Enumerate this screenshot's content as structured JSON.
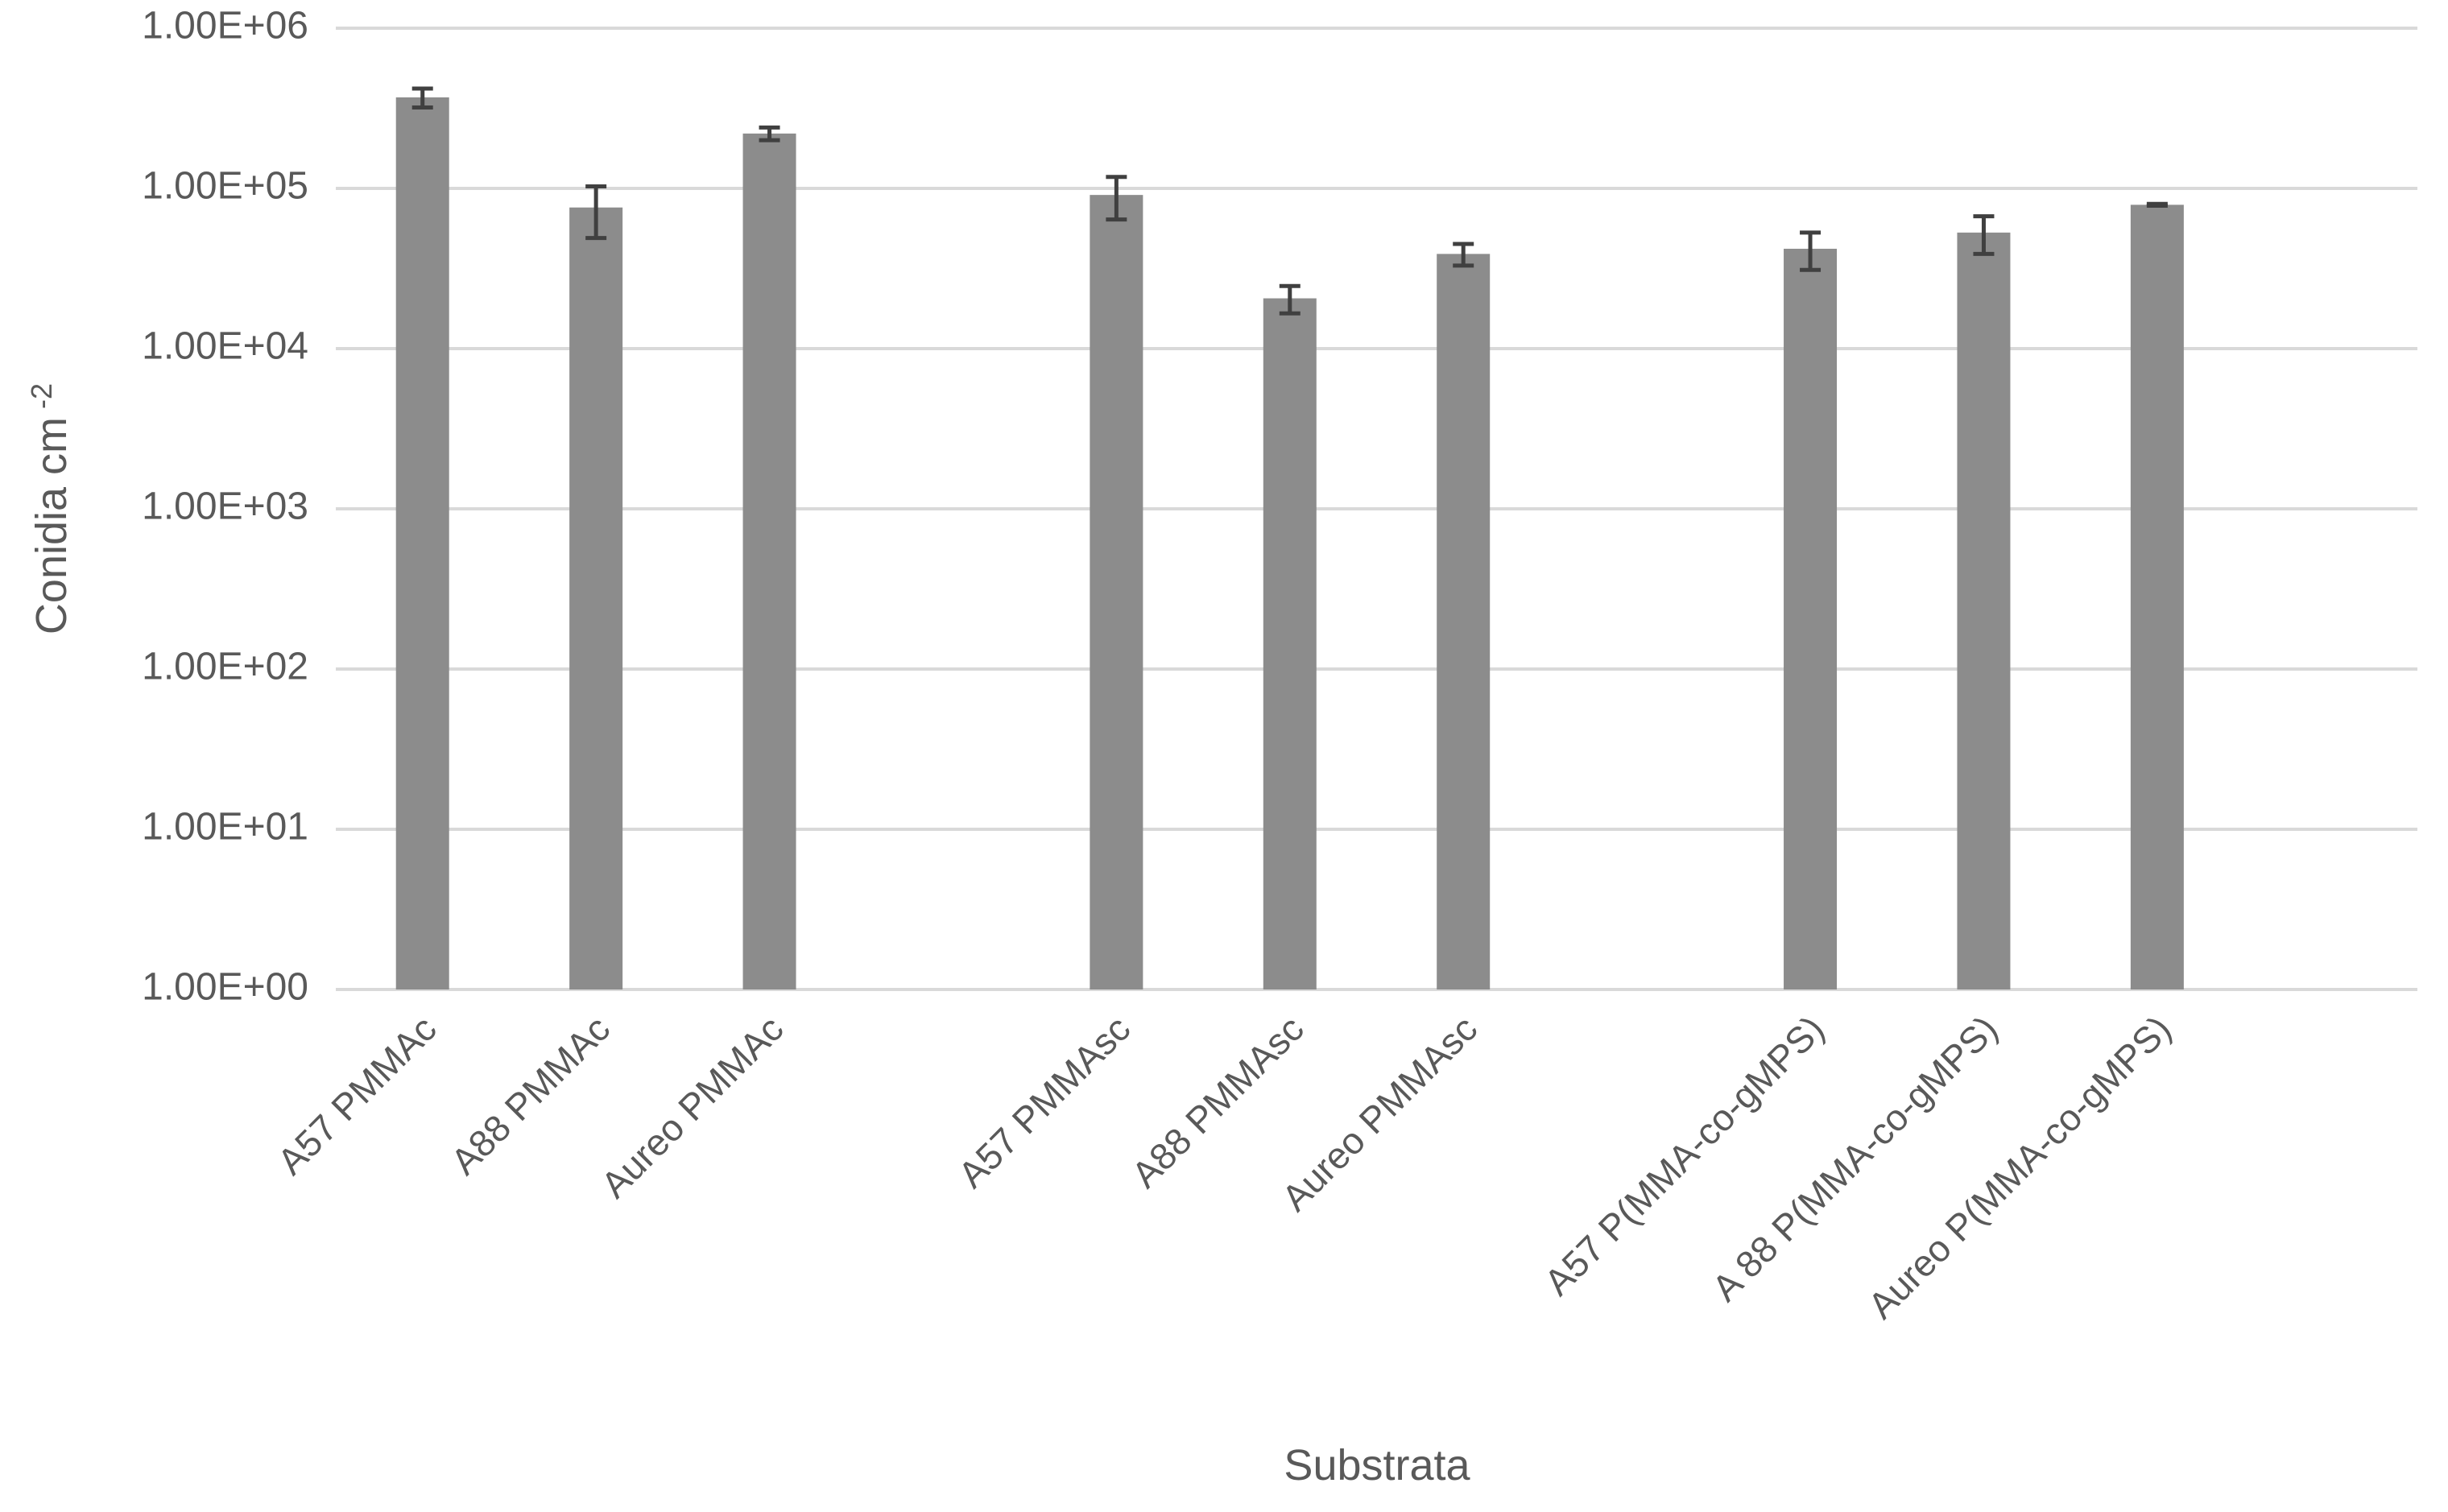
{
  "chart_data": {
    "type": "bar",
    "x_label": "Substrata",
    "y_label": {
      "text": "Conidia cm",
      "superscript": "-2"
    },
    "categories": [
      "A57 PMMAc",
      "A88 PMMAc",
      "Aureo PMMAc",
      null,
      "A57 PMMAsc",
      "A88 PMMAsc",
      "Aureo PMMAsc",
      null,
      "A57 P(MMA-co-gMPS)",
      "A 88 P(MMA-co-gMPS)",
      "Aureo P(MMA-co-gMPS)",
      null
    ],
    "series": [
      {
        "color": "#8c8c8c",
        "values": [
          370000,
          76000,
          220000,
          null,
          91000,
          20600,
          39000,
          null,
          42000,
          53000,
          79000,
          null
        ],
        "errors": [
          50000,
          27000,
          20000,
          null,
          27000,
          4000,
          6000,
          null,
          11000,
          14000,
          1000,
          null
        ]
      }
    ],
    "error_color": "#404040",
    "log_scale": true,
    "ylim": [
      1,
      1000000
    ],
    "yticks": [
      {
        "value": 1,
        "label": "1.00E+00"
      },
      {
        "value": 10,
        "label": "1.00E+01"
      },
      {
        "value": 100,
        "label": "1.00E+02"
      },
      {
        "value": 1000,
        "label": "1.00E+03"
      },
      {
        "value": 10000,
        "label": "1.00E+04"
      },
      {
        "value": 100000,
        "label": "1.00E+05"
      },
      {
        "value": 1000000,
        "label": "1.00E+06"
      }
    ],
    "grid": true
  }
}
